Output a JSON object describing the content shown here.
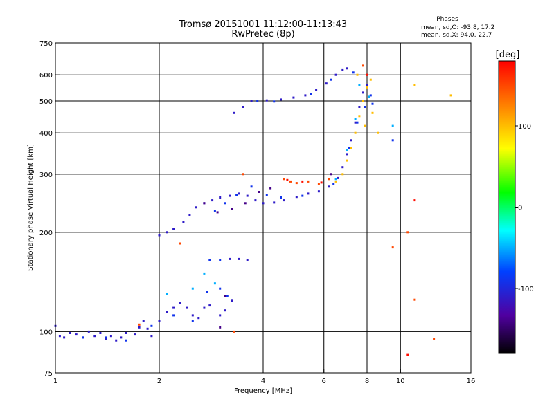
{
  "header": {
    "title_line1": "Tromsø 20151001 11:12:00-11:13:43",
    "title_line2": "RwPretec (8p)",
    "stats_title": "Phases",
    "stats_o": "mean, sd,O: -93.8, 17.2",
    "stats_x": "mean, sd,X:  94.0, 22.7"
  },
  "chart_data": {
    "type": "scatter",
    "xlabel": "Frequency [MHz]",
    "ylabel": "Stationary phase Virtual Height [km]",
    "x_scale": "log",
    "y_scale": "log",
    "xlim": [
      1,
      16
    ],
    "ylim": [
      75,
      750
    ],
    "x_ticks": [
      1,
      2,
      4,
      6,
      8,
      10,
      16
    ],
    "x_tick_labels": [
      "1",
      "2",
      "4",
      "6",
      "8",
      "10",
      "16"
    ],
    "y_ticks": [
      75,
      100,
      200,
      300,
      400,
      500,
      600,
      750
    ],
    "y_tick_labels": [
      "75",
      "100",
      "200",
      "300",
      "400",
      "500",
      "600",
      "750"
    ],
    "grid": true,
    "colorbar": {
      "label": "[deg]",
      "range": [
        -180,
        180
      ],
      "ticks": [
        100,
        0,
        -100
      ],
      "tick_labels": [
        "100",
        "0",
        "-100"
      ]
    },
    "series": [
      {
        "phase": -110,
        "points": [
          [
            1.0,
            104
          ],
          [
            1.03,
            97
          ],
          [
            1.06,
            96
          ],
          [
            1.1,
            99
          ],
          [
            1.15,
            98
          ],
          [
            1.2,
            96
          ],
          [
            1.25,
            100
          ],
          [
            1.3,
            97
          ],
          [
            1.35,
            99
          ],
          [
            1.4,
            95
          ],
          [
            1.45,
            97
          ],
          [
            1.5,
            94
          ],
          [
            1.55,
            96
          ],
          [
            1.6,
            99
          ],
          [
            1.7,
            98
          ],
          [
            1.75,
            103
          ],
          [
            1.8,
            108
          ],
          [
            1.85,
            102
          ],
          [
            1.9,
            97
          ],
          [
            2.0,
            108
          ],
          [
            2.1,
            115
          ],
          [
            2.2,
            118
          ],
          [
            2.3,
            122
          ],
          [
            2.4,
            118
          ],
          [
            2.5,
            112
          ],
          [
            2.6,
            110
          ],
          [
            2.7,
            118
          ],
          [
            2.8,
            120
          ],
          [
            3.0,
            112
          ],
          [
            3.1,
            116
          ],
          [
            3.25,
            124
          ],
          [
            2.0,
            196
          ],
          [
            2.1,
            200
          ],
          [
            2.2,
            205
          ],
          [
            2.35,
            215
          ],
          [
            2.45,
            225
          ],
          [
            2.55,
            238
          ],
          [
            2.7,
            245
          ],
          [
            2.85,
            250
          ],
          [
            3.0,
            255
          ],
          [
            3.2,
            258
          ],
          [
            3.4,
            262
          ],
          [
            3.6,
            258
          ],
          [
            3.8,
            250
          ],
          [
            4.0,
            245
          ],
          [
            4.3,
            246
          ],
          [
            4.6,
            250
          ],
          [
            5.0,
            256
          ],
          [
            5.4,
            262
          ],
          [
            5.8,
            266
          ],
          [
            6.2,
            275
          ],
          [
            6.6,
            292
          ],
          [
            6.8,
            315
          ],
          [
            7.0,
            345
          ],
          [
            7.2,
            380
          ],
          [
            7.4,
            430
          ],
          [
            7.6,
            480
          ],
          [
            7.8,
            530
          ],
          [
            8.0,
            560
          ],
          [
            3.3,
            460
          ],
          [
            3.5,
            480
          ],
          [
            3.7,
            500
          ],
          [
            4.1,
            502
          ],
          [
            4.5,
            505
          ],
          [
            4.9,
            512
          ],
          [
            5.3,
            520
          ],
          [
            5.7,
            540
          ],
          [
            6.1,
            565
          ],
          [
            6.5,
            600
          ],
          [
            6.8,
            620
          ],
          [
            7.0,
            628
          ],
          [
            3.2,
            166
          ],
          [
            3.4,
            166
          ],
          [
            3.6,
            165
          ]
        ]
      },
      {
        "phase": -90,
        "points": [
          [
            1.2,
            96
          ],
          [
            1.4,
            96
          ],
          [
            1.6,
            94
          ],
          [
            1.9,
            104
          ],
          [
            2.2,
            112
          ],
          [
            2.5,
            108
          ],
          [
            2.75,
            132
          ],
          [
            3.0,
            135
          ],
          [
            3.15,
            128
          ],
          [
            2.8,
            165
          ],
          [
            3.0,
            165
          ],
          [
            2.9,
            232
          ],
          [
            3.1,
            245
          ],
          [
            3.35,
            260
          ],
          [
            3.7,
            275
          ],
          [
            4.1,
            260
          ],
          [
            4.5,
            255
          ],
          [
            5.2,
            258
          ],
          [
            6.4,
            280
          ],
          [
            7.1,
            360
          ],
          [
            7.5,
            430
          ],
          [
            7.9,
            480
          ],
          [
            8.2,
            520
          ],
          [
            3.85,
            500
          ],
          [
            4.3,
            498
          ],
          [
            5.5,
            525
          ],
          [
            6.3,
            580
          ],
          [
            7.3,
            610
          ],
          [
            8.3,
            490
          ],
          [
            9.5,
            380
          ]
        ]
      },
      {
        "phase": -140,
        "points": [
          [
            2.7,
            245
          ],
          [
            2.95,
            230
          ],
          [
            3.25,
            235
          ],
          [
            3.55,
            245
          ],
          [
            3.9,
            265
          ],
          [
            4.2,
            272
          ],
          [
            3.1,
            128
          ],
          [
            3.0,
            103
          ],
          [
            6.3,
            300
          ]
        ]
      },
      {
        "phase": -50,
        "points": [
          [
            2.1,
            130
          ],
          [
            2.5,
            135
          ],
          [
            2.7,
            150
          ],
          [
            2.9,
            140
          ],
          [
            7.6,
            560
          ],
          [
            8.1,
            515
          ],
          [
            7.4,
            440
          ],
          [
            7.0,
            355
          ],
          [
            6.5,
            290
          ],
          [
            9.5,
            420
          ]
        ]
      },
      {
        "phase": 100,
        "points": [
          [
            6.8,
            300
          ],
          [
            7.0,
            330
          ],
          [
            7.2,
            360
          ],
          [
            7.4,
            400
          ],
          [
            7.6,
            450
          ],
          [
            7.8,
            500
          ],
          [
            8.0,
            550
          ],
          [
            8.2,
            580
          ],
          [
            6.5,
            285
          ],
          [
            7.9,
            420
          ],
          [
            8.3,
            460
          ],
          [
            8.6,
            400
          ],
          [
            7.5,
            600
          ],
          [
            11.0,
            560
          ],
          [
            14.0,
            520
          ]
        ]
      },
      {
        "phase": 150,
        "points": [
          [
            4.6,
            290
          ],
          [
            4.8,
            285
          ],
          [
            5.0,
            282
          ],
          [
            5.4,
            285
          ],
          [
            5.8,
            280
          ],
          [
            6.2,
            290
          ],
          [
            7.8,
            640
          ],
          [
            8.0,
            600
          ],
          [
            3.5,
            300
          ],
          [
            2.3,
            185
          ],
          [
            1.75,
            105
          ],
          [
            3.3,
            100
          ],
          [
            9.5,
            180
          ],
          [
            10.5,
            200
          ],
          [
            12.5,
            95
          ],
          [
            11.0,
            125
          ]
        ]
      },
      {
        "phase": 175,
        "points": [
          [
            4.7,
            288
          ],
          [
            5.2,
            285
          ],
          [
            5.9,
            283
          ],
          [
            8.0,
            600
          ],
          [
            10.5,
            85
          ],
          [
            11.0,
            250
          ]
        ]
      }
    ]
  }
}
